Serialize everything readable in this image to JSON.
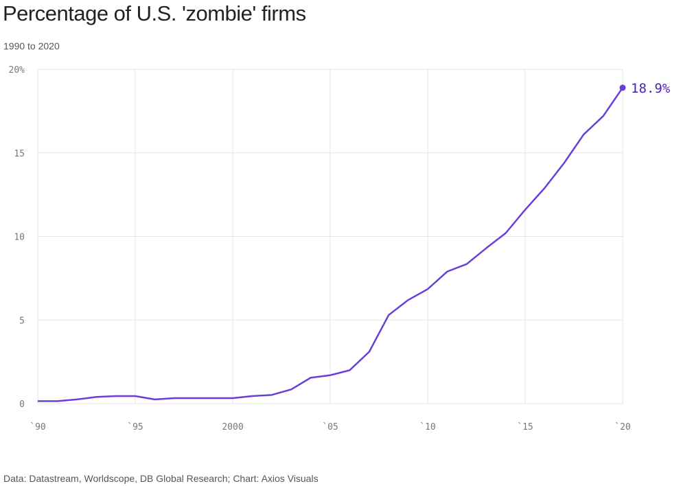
{
  "chart_data": {
    "type": "line",
    "title": "Percentage of U.S. 'zombie' firms",
    "subtitle": "1990 to 2020",
    "source": "Data: Datastream, Worldscope, DB Global Research; Chart: Axios Visuals",
    "xlabel": "",
    "ylabel": "",
    "xlim": [
      1990,
      2020
    ],
    "ylim": [
      0,
      20
    ],
    "grid": true,
    "x_ticks": [
      {
        "value": 1990,
        "label": "`90"
      },
      {
        "value": 1995,
        "label": "`95"
      },
      {
        "value": 2000,
        "label": "2000"
      },
      {
        "value": 2005,
        "label": "`05"
      },
      {
        "value": 2010,
        "label": "`10"
      },
      {
        "value": 2015,
        "label": "`15"
      },
      {
        "value": 2020,
        "label": "`20"
      }
    ],
    "y_ticks": [
      {
        "value": 0,
        "label": "0"
      },
      {
        "value": 5,
        "label": "5"
      },
      {
        "value": 10,
        "label": "10"
      },
      {
        "value": 15,
        "label": "15"
      },
      {
        "value": 20,
        "label": "20%"
      }
    ],
    "series": [
      {
        "color": "#6a3ddb",
        "x": [
          1990,
          1991,
          1992,
          1993,
          1994,
          1995,
          1996,
          1997,
          1998,
          1999,
          2000,
          2001,
          2002,
          2003,
          2004,
          2005,
          2006,
          2007,
          2008,
          2009,
          2010,
          2011,
          2012,
          2013,
          2014,
          2015,
          2016,
          2017,
          2018,
          2019,
          2020
        ],
        "values": [
          0.15,
          0.15,
          0.25,
          0.4,
          0.45,
          0.45,
          0.25,
          0.33,
          0.33,
          0.33,
          0.33,
          0.45,
          0.52,
          0.85,
          1.55,
          1.7,
          2.0,
          3.1,
          5.3,
          6.2,
          6.85,
          7.9,
          8.35,
          9.3,
          10.2,
          11.6,
          12.9,
          14.4,
          16.1,
          17.2,
          18.9
        ]
      }
    ],
    "end_label": "18.9%",
    "end_label_color": "#4a1fb8"
  }
}
